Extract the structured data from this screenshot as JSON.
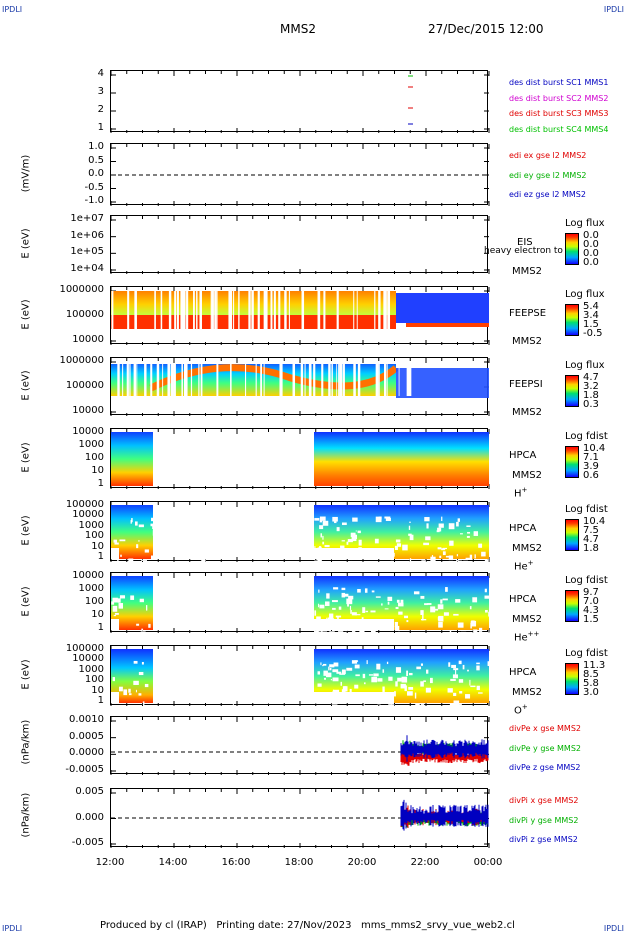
{
  "header": {
    "corner_tl": "IPDLI",
    "corner_tr": "IPDLI",
    "corner_bl": "IPDLI",
    "corner_br": "IPDLI",
    "title": "MMS2",
    "date": "27/Dec/2015 12:00"
  },
  "footer": "Produced by cl (IRAP)   Printing date: 27/Nov/2023   mms_mms2_srvy_vue_web2.cl",
  "chart_data": {
    "type": "multi-panel-timeseries",
    "x_ticks": [
      "12:00",
      "14:00",
      "16:00",
      "18:00",
      "20:00",
      "22:00",
      "00:00"
    ],
    "panels": [
      {
        "id": "burst",
        "yticks": [
          "4",
          "3",
          "2",
          "1"
        ],
        "ylabel": "",
        "legend": [
          {
            "text": "des dist burst SC1 MMS1",
            "color": "#0000c0"
          },
          {
            "text": "des dist burst SC2 MMS2",
            "color": "#d000d0"
          },
          {
            "text": "des dist burst SC3 MMS3",
            "color": "#e00000"
          },
          {
            "text": "des dist burst SC4 MMS4",
            "color": "#00c000"
          }
        ]
      },
      {
        "id": "edi",
        "yticks": [
          "1.0",
          "0.5",
          "0.0",
          "-0.5",
          "-1.0"
        ],
        "ylabel": "(mV/m)",
        "legend": [
          {
            "text": "edi ex gse l2 MMS2",
            "color": "#e00000"
          },
          {
            "text": "edi ey gse l2 MMS2",
            "color": "#00b000"
          },
          {
            "text": "edi ez gse l2 MMS2",
            "color": "#0000c0"
          }
        ]
      },
      {
        "id": "eis",
        "yticks": [
          "1e+07",
          "1e+06",
          "1e+05",
          "1e+04"
        ],
        "ylabel": "E (eV)",
        "side": [
          "EIS",
          "heavy electron to",
          "MMS2"
        ],
        "cbar_title": "Log flux",
        "cbar_vals": [
          "0.0",
          "0.0",
          "0.0",
          "0.0"
        ]
      },
      {
        "id": "feepse",
        "yticks": [
          "1000000",
          "100000",
          "10000"
        ],
        "ylabel": "E (eV)",
        "side": [
          "FEEPSE",
          "MMS2"
        ],
        "cbar_title": "Log flux",
        "cbar_vals": [
          "5.4",
          "3.4",
          "1.5",
          "-0.5"
        ]
      },
      {
        "id": "feepsi",
        "yticks": [
          "1000000",
          "100000",
          "10000"
        ],
        "ylabel": "E (eV)",
        "side": [
          "FEEPSI",
          "MMS2"
        ],
        "cbar_title": "Log flux",
        "cbar_vals": [
          "4.7",
          "3.2",
          "1.8",
          "0.3"
        ]
      },
      {
        "id": "hpca_h",
        "yticks": [
          "10000",
          "1000",
          "100",
          "10",
          "1"
        ],
        "ylabel": "E (eV)",
        "side": [
          "HPCA",
          "MMS2"
        ],
        "species": "H",
        "species_sup": "+",
        "cbar_title": "Log fdist",
        "cbar_vals": [
          "10.4",
          "7.1",
          "3.9",
          "0.6"
        ]
      },
      {
        "id": "hpca_he",
        "yticks": [
          "100000",
          "10000",
          "1000",
          "100",
          "10",
          "1"
        ],
        "ylabel": "E (eV)",
        "side": [
          "HPCA",
          "MMS2"
        ],
        "species": "He",
        "species_sup": "+",
        "cbar_title": "Log fdist",
        "cbar_vals": [
          "10.4",
          "7.5",
          "4.7",
          "1.8"
        ]
      },
      {
        "id": "hpca_hepp",
        "yticks": [
          "10000",
          "1000",
          "100",
          "10",
          "1"
        ],
        "ylabel": "E (eV)",
        "side": [
          "HPCA",
          "MMS2"
        ],
        "species": "He",
        "species_sup": "++",
        "cbar_title": "Log fdist",
        "cbar_vals": [
          "9.7",
          "7.0",
          "4.3",
          "1.5"
        ]
      },
      {
        "id": "hpca_o",
        "yticks": [
          "100000",
          "10000",
          "1000",
          "100",
          "10",
          "1"
        ],
        "ylabel": "E (eV)",
        "side": [
          "HPCA",
          "MMS2"
        ],
        "species": "O",
        "species_sup": "+",
        "cbar_title": "Log fdist",
        "cbar_vals": [
          "11.3",
          "8.5",
          "5.8",
          "3.0"
        ]
      },
      {
        "id": "divpe",
        "yticks": [
          "0.0010",
          "0.0005",
          "0.0000",
          "-0.0005"
        ],
        "ylabel": "(nPa/km)",
        "legend": [
          {
            "text": "divPe x gse MMS2",
            "color": "#e00000"
          },
          {
            "text": "divPe y gse MMS2",
            "color": "#00b000"
          },
          {
            "text": "divPe z gse MMS2",
            "color": "#0000c0"
          }
        ]
      },
      {
        "id": "divpi",
        "yticks": [
          "0.005",
          "0.000",
          "-0.005"
        ],
        "ylabel": "(nPa/km)",
        "legend": [
          {
            "text": "divPi x gse MMS2",
            "color": "#e00000"
          },
          {
            "text": "divPi y gse MMS2",
            "color": "#00b000"
          },
          {
            "text": "divPi z gse MMS2",
            "color": "#0000c0"
          }
        ]
      }
    ]
  }
}
